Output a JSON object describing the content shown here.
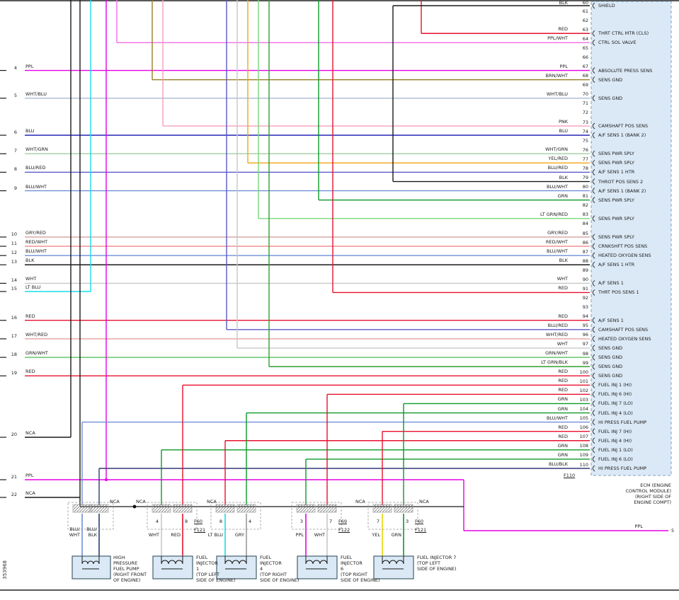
{
  "palette": {
    "BLK": "#1a1a1a",
    "RED": "#e8112d",
    "PPL": "#e400e4",
    "PPL_WHT": "#f06ee8",
    "WHT_BLU": "#aab8d8",
    "BRN_WHT": "#9a7d22",
    "PNK": "#f2a0b8",
    "BLU": "#2828b8",
    "WHT_GRN": "#9fcf9f",
    "YEL_RED": "#f0a818",
    "BLU_RED": "#5858c8",
    "BLU_WHT": "#6f8fd8",
    "GRN": "#0a9a28",
    "LT_GRN_RED": "#78d878",
    "GRY_RED": "#d8a8a8",
    "RED_WHT": "#f08888",
    "WHT": "#c8c8c8",
    "LT_BLU": "#18dce8",
    "WHT_RED": "#eaa8a8",
    "GRN_WHT": "#58c058",
    "LT_GRN_BLK": "#2f9f2f",
    "GRY": "#9a9a9a",
    "YEL": "#e8d800",
    "BLU_BLK": "#303878",
    "NCA": "#1a1a1a"
  },
  "ecm": {
    "connector_label": "F110",
    "caption": "ECM (ENGINE\nCONTROL MODULE)\n(RIGHT SIDE OF\nENGINE COMPT)",
    "pins": [
      {
        "pin": "60",
        "color": "BLK",
        "label": "SHIELD"
      },
      {
        "pin": "61",
        "color": "",
        "label": ""
      },
      {
        "pin": "62",
        "color": "",
        "label": ""
      },
      {
        "pin": "63",
        "color": "RED",
        "label": "THRT CTRL MTR (CLS)"
      },
      {
        "pin": "64",
        "color": "PPL/WHT",
        "label": "CTRL SOL VALVE"
      },
      {
        "pin": "65",
        "color": "",
        "label": ""
      },
      {
        "pin": "66",
        "color": "",
        "label": ""
      },
      {
        "pin": "67",
        "color": "PPL",
        "label": "ABSOLUTE PRESS SENS"
      },
      {
        "pin": "68",
        "color": "BRN/WHT",
        "label": "SENS GND"
      },
      {
        "pin": "69",
        "color": "",
        "label": ""
      },
      {
        "pin": "70",
        "color": "WHT/BLU",
        "label": "SENS GND"
      },
      {
        "pin": "71",
        "color": "",
        "label": ""
      },
      {
        "pin": "72",
        "color": "",
        "label": ""
      },
      {
        "pin": "73",
        "color": "PNK",
        "label": "CAMSHAFT POS SENS"
      },
      {
        "pin": "74",
        "color": "BLU",
        "label": "A/F SENS 1 (BANK 2)"
      },
      {
        "pin": "75",
        "color": "",
        "label": ""
      },
      {
        "pin": "76",
        "color": "WHT/GRN",
        "label": "SENS PWR SPLY"
      },
      {
        "pin": "77",
        "color": "YEL/RED",
        "label": "SENS PWR SPLY"
      },
      {
        "pin": "78",
        "color": "BLU/RED",
        "label": "A/F SENS 1 HTR"
      },
      {
        "pin": "79",
        "color": "BLK",
        "label": "THROT POS SENS 2"
      },
      {
        "pin": "80",
        "color": "BLU/WHT",
        "label": "A/F SENS 1 (BANK 2)"
      },
      {
        "pin": "81",
        "color": "GRN",
        "label": "SENS PWR SPLY"
      },
      {
        "pin": "82",
        "color": "",
        "label": ""
      },
      {
        "pin": "83",
        "color": "LT GRN/RED",
        "label": "SENS PWR SPLY"
      },
      {
        "pin": "84",
        "color": "",
        "label": ""
      },
      {
        "pin": "85",
        "color": "GRY/RED",
        "label": "SENS PWR SPLY"
      },
      {
        "pin": "86",
        "color": "RED/WHT",
        "label": "CRNKSHFT POS SENS"
      },
      {
        "pin": "87",
        "color": "BLU/WHT",
        "label": "HEATED OXYGEN SENS"
      },
      {
        "pin": "88",
        "color": "BLK",
        "label": "A/F SENS 1 HTR"
      },
      {
        "pin": "89",
        "color": "",
        "label": ""
      },
      {
        "pin": "90",
        "color": "WHT",
        "label": "A/F SENS 1"
      },
      {
        "pin": "91",
        "color": "RED",
        "label": "THRT POS SENS 1"
      },
      {
        "pin": "92",
        "color": "",
        "label": ""
      },
      {
        "pin": "93",
        "color": "",
        "label": ""
      },
      {
        "pin": "94",
        "color": "RED",
        "label": "A/F SENS 1"
      },
      {
        "pin": "95",
        "color": "BLU/RED",
        "label": "CAMSHAFT POS SENS"
      },
      {
        "pin": "96",
        "color": "WHT/RED",
        "label": "HEATED OXYGEN SENS"
      },
      {
        "pin": "97",
        "color": "WHT",
        "label": "SENS GND"
      },
      {
        "pin": "98",
        "color": "GRN/WHT",
        "label": "SENS GND"
      },
      {
        "pin": "99",
        "color": "LT GRN/BLK",
        "label": "SENS GND"
      },
      {
        "pin": "100",
        "color": "RED",
        "label": "SENS GND"
      },
      {
        "pin": "101",
        "color": "RED",
        "label": "FUEL INJ 1 (HI)"
      },
      {
        "pin": "102",
        "color": "RED",
        "label": "FUEL INJ 6 (HI)"
      },
      {
        "pin": "103",
        "color": "GRN",
        "label": "FUEL INJ 7 (LO)"
      },
      {
        "pin": "104",
        "color": "GRN",
        "label": "FUEL INJ 4 (LO)"
      },
      {
        "pin": "105",
        "color": "BLU/WHT",
        "label": "HI PRESS FUEL PUMP"
      },
      {
        "pin": "106",
        "color": "RED",
        "label": "FUEL INJ 7 (HI)"
      },
      {
        "pin": "107",
        "color": "RED",
        "label": "FUEL INJ 4 (HI)"
      },
      {
        "pin": "108",
        "color": "GRN",
        "label": "FUEL INJ 1 (LO)"
      },
      {
        "pin": "109",
        "color": "GRN",
        "label": "FUEL INJ 6 (LO)"
      },
      {
        "pin": "110",
        "color": "BLU/BLK",
        "label": "HI PRESS FUEL PUMP"
      }
    ]
  },
  "left_entries": [
    {
      "num": "4",
      "color": "PPL"
    },
    {
      "num": "5",
      "color": "WHT/BLU"
    },
    {
      "num": "6",
      "color": "BLU"
    },
    {
      "num": "7",
      "color": "WHT/GRN"
    },
    {
      "num": "8",
      "color": "BLU/RED"
    },
    {
      "num": "9",
      "color": "BLU/WHT"
    },
    {
      "num": "10",
      "color": "GRY/RED"
    },
    {
      "num": "11",
      "color": "RED/WHT"
    },
    {
      "num": "12",
      "color": "BLU/WHT"
    },
    {
      "num": "13",
      "color": "BLK"
    },
    {
      "num": "14",
      "color": "WHT"
    },
    {
      "num": "15",
      "color": "LT BLU"
    },
    {
      "num": "16",
      "color": "RED"
    },
    {
      "num": "17",
      "color": "WHT/RED"
    },
    {
      "num": "18",
      "color": "GRN/WHT"
    },
    {
      "num": "19",
      "color": "RED"
    },
    {
      "num": "20",
      "color": "NCA"
    },
    {
      "num": "21",
      "color": "PPL"
    },
    {
      "num": "22",
      "color": "NCA"
    }
  ],
  "components": [
    {
      "label": "HIGH\nPRESSURE\nFUEL PUMP\n(RIGHT FRONT\nOF ENGINE)",
      "wire_labels": [
        "BLU/\nWHT",
        "BLU/\nBLK"
      ],
      "conn_pins": [
        "",
        ""
      ],
      "conn_label": "",
      "harness_label": ""
    },
    {
      "label": "FUEL\nINJECTOR\n1\n(TOP LEFT\nSIDE OF ENGINE)",
      "wire_labels": [
        "WHT",
        "RED"
      ],
      "conn_pins": [
        "4",
        "8"
      ],
      "conn_label": "F60",
      "harness_label": "F121"
    },
    {
      "label": "FUEL\nINJECTOR\n4\n(TOP RIGHT\nSIDE OF ENGINE)",
      "wire_labels": [
        "LT BLU",
        "GRY"
      ],
      "conn_pins": [
        "8",
        "4"
      ],
      "conn_label": "",
      "harness_label": ""
    },
    {
      "label": "FUEL\nINJECTOR\n6\n(TOP RIGHT\nSIDE OF ENGINE)",
      "wire_labels": [
        "PPL",
        "WHT"
      ],
      "conn_pins": [
        "3",
        "7"
      ],
      "conn_label": "F69",
      "harness_label": "F122"
    },
    {
      "label": "FUEL INJECTOR 7\n(TOP LEFT\nSIDE OF ENGINE)",
      "wire_labels": [
        "YEL",
        "GRN"
      ],
      "conn_pins": [
        "7",
        "3"
      ],
      "conn_label": "F60",
      "harness_label": "F121"
    }
  ],
  "nca_labels": [
    "NCA",
    "NCA",
    "NCA",
    "NCA",
    "NCA"
  ],
  "right_exit": {
    "color_label": "PPL",
    "num": "5"
  },
  "footnote": "353968"
}
